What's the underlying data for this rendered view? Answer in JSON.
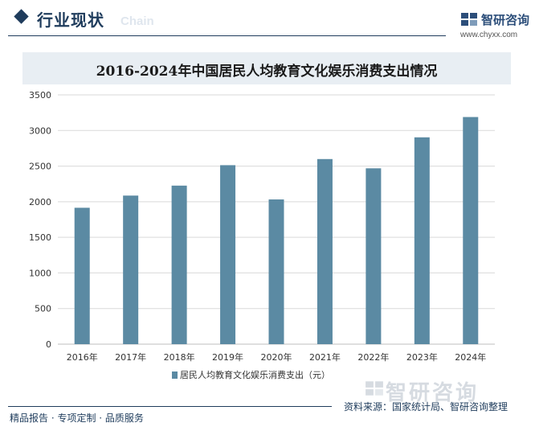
{
  "header": {
    "title": "行业现状",
    "ghost_text": "Chain"
  },
  "brand": {
    "name": "智研咨询",
    "url": "www.chyxx.com",
    "watermark": "智研咨询"
  },
  "chart_data": {
    "type": "bar",
    "title": "2016-2024年中国居民人均教育文化娱乐消费支出情况",
    "categories": [
      "2016年",
      "2017年",
      "2018年",
      "2019年",
      "2020年",
      "2021年",
      "2022年",
      "2023年",
      "2024年"
    ],
    "series": [
      {
        "name": "居民人均教育文化娱乐消费支出（元）",
        "values": [
          1915,
          2086,
          2226,
          2513,
          2032,
          2599,
          2469,
          2904,
          3189
        ],
        "color": "#5b8aa3"
      }
    ],
    "ylim": [
      0,
      3500
    ],
    "yticks": [
      "0",
      "500",
      "1000",
      "1500",
      "2000",
      "2500",
      "3000",
      "3500"
    ],
    "grid": true,
    "legend_position": "bottom"
  },
  "footer": {
    "left": "精品报告 · 专项定制 · 品质服务",
    "source": "资料来源：国家统计局、智研咨询整理"
  },
  "colors": {
    "accent": "#1f3c5c",
    "bar": "#5b8aa3",
    "title_band": "#e8eef3"
  }
}
